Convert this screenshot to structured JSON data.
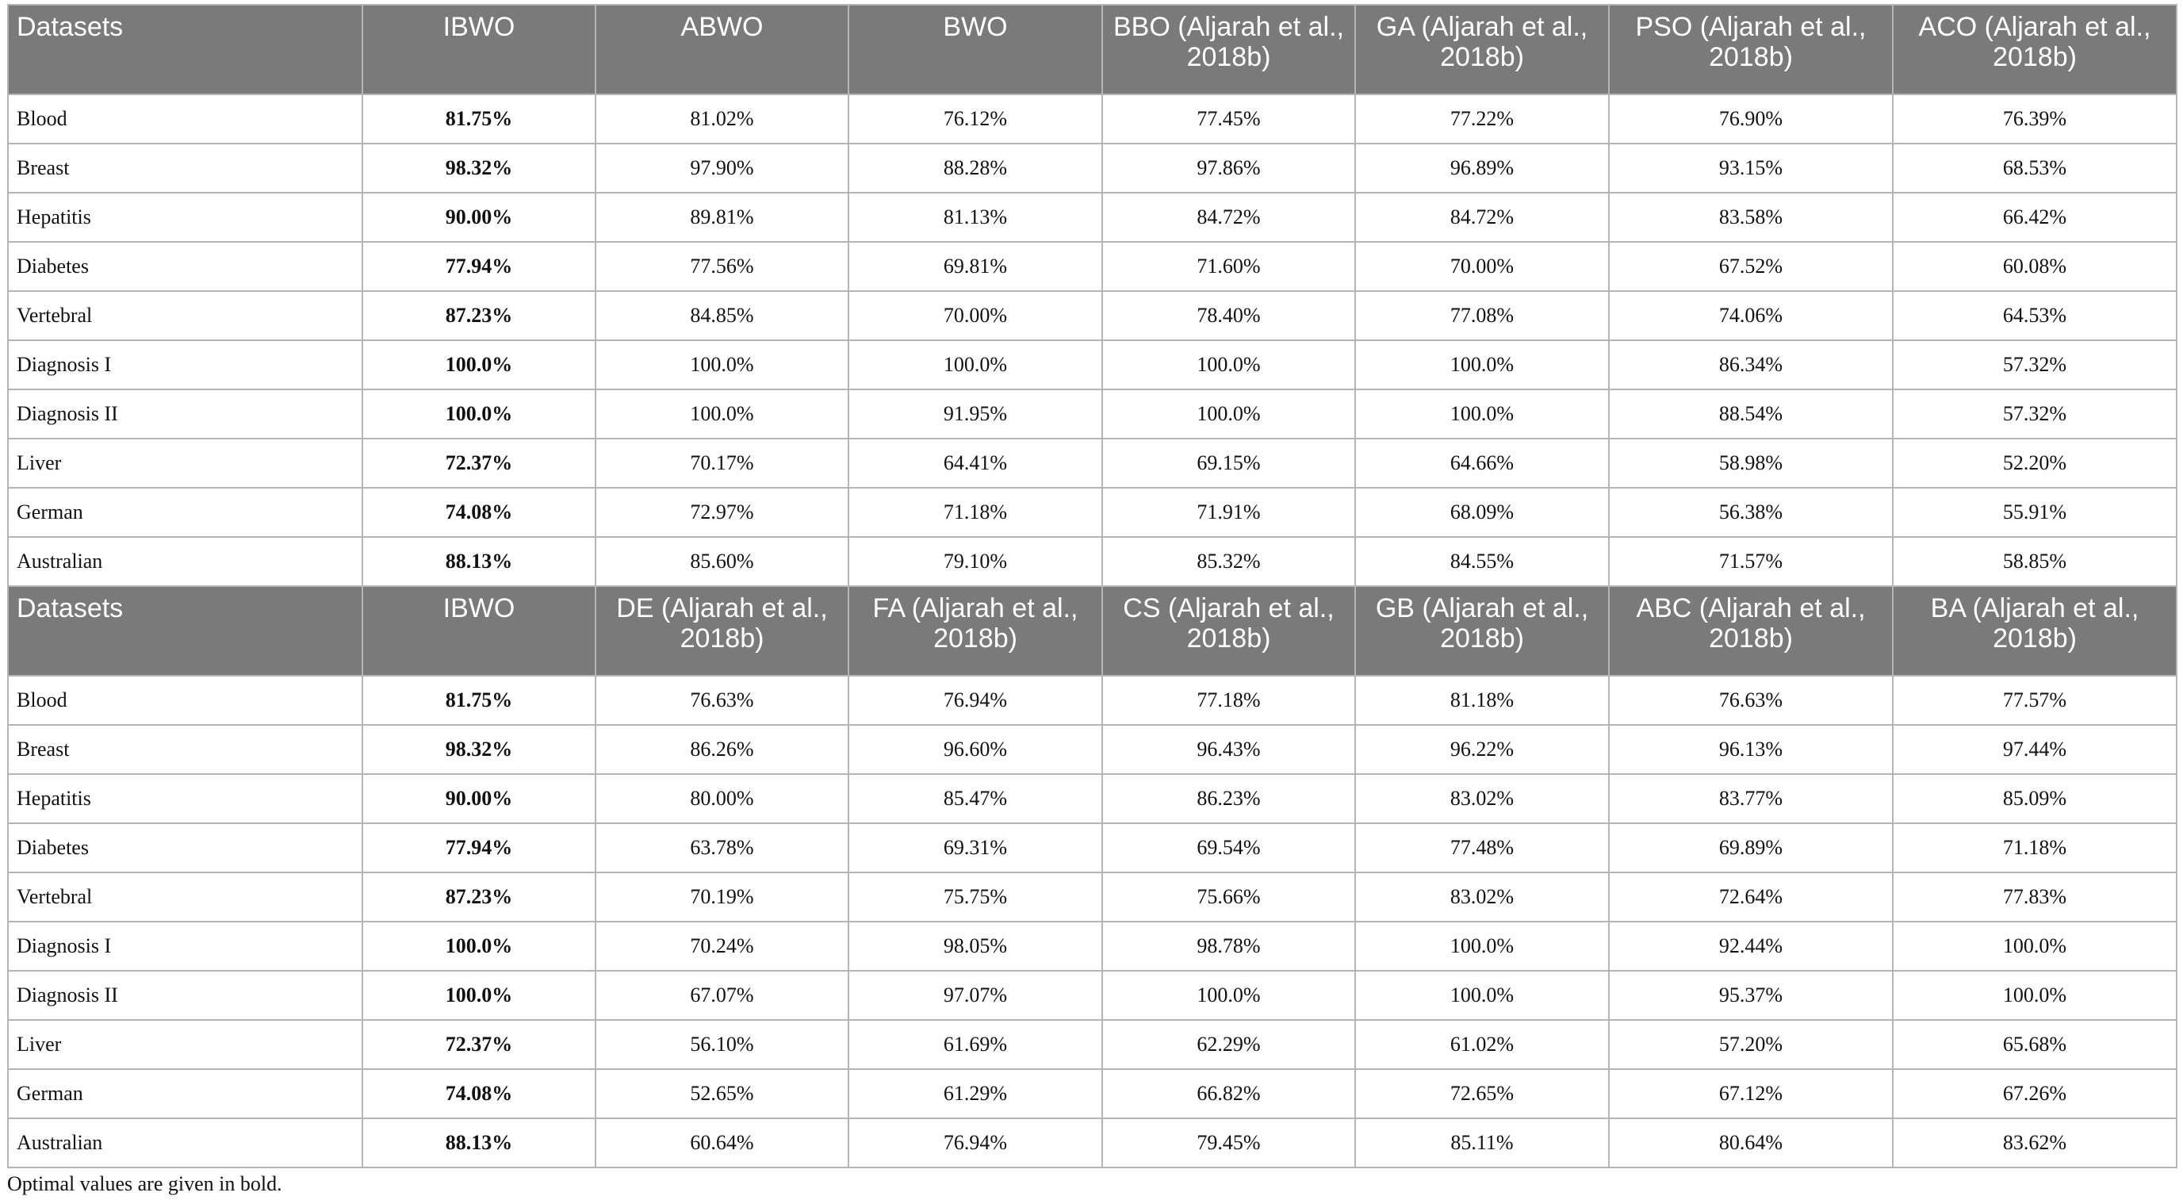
{
  "tables": [
    {
      "header": [
        "Datasets",
        "IBWO",
        "ABWO",
        "BWO",
        "BBO (Aljarah et al., 2018b)",
        "GA (Aljarah et al., 2018b)",
        "PSO (Aljarah et al., 2018b)",
        "ACO (Aljarah et al., 2018b)"
      ],
      "rows": [
        [
          "Blood",
          "81.75%",
          "81.02%",
          "76.12%",
          "77.45%",
          "77.22%",
          "76.90%",
          "76.39%"
        ],
        [
          "Breast",
          "98.32%",
          "97.90%",
          "88.28%",
          "97.86%",
          "96.89%",
          "93.15%",
          "68.53%"
        ],
        [
          "Hepatitis",
          "90.00%",
          "89.81%",
          "81.13%",
          "84.72%",
          "84.72%",
          "83.58%",
          "66.42%"
        ],
        [
          "Diabetes",
          "77.94%",
          "77.56%",
          "69.81%",
          "71.60%",
          "70.00%",
          "67.52%",
          "60.08%"
        ],
        [
          "Vertebral",
          "87.23%",
          "84.85%",
          "70.00%",
          "78.40%",
          "77.08%",
          "74.06%",
          "64.53%"
        ],
        [
          "Diagnosis I",
          "100.0%",
          "100.0%",
          "100.0%",
          "100.0%",
          "100.0%",
          "86.34%",
          "57.32%"
        ],
        [
          "Diagnosis II",
          "100.0%",
          "100.0%",
          "91.95%",
          "100.0%",
          "100.0%",
          "88.54%",
          "57.32%"
        ],
        [
          "Liver",
          "72.37%",
          "70.17%",
          "64.41%",
          "69.15%",
          "64.66%",
          "58.98%",
          "52.20%"
        ],
        [
          "German",
          "74.08%",
          "72.97%",
          "71.18%",
          "71.91%",
          "68.09%",
          "56.38%",
          "55.91%"
        ],
        [
          "Australian",
          "88.13%",
          "85.60%",
          "79.10%",
          "85.32%",
          "84.55%",
          "71.57%",
          "58.85%"
        ]
      ]
    },
    {
      "header": [
        "Datasets",
        "IBWO",
        "DE (Aljarah et al., 2018b)",
        "FA (Aljarah et al., 2018b)",
        "CS (Aljarah et al., 2018b)",
        "GB (Aljarah et al., 2018b)",
        "ABC (Aljarah et al., 2018b)",
        "BA (Aljarah et al., 2018b)"
      ],
      "rows": [
        [
          "Blood",
          "81.75%",
          "76.63%",
          "76.94%",
          "77.18%",
          "81.18%",
          "76.63%",
          "77.57%"
        ],
        [
          "Breast",
          "98.32%",
          "86.26%",
          "96.60%",
          "96.43%",
          "96.22%",
          "96.13%",
          "97.44%"
        ],
        [
          "Hepatitis",
          "90.00%",
          "80.00%",
          "85.47%",
          "86.23%",
          "83.02%",
          "83.77%",
          "85.09%"
        ],
        [
          "Diabetes",
          "77.94%",
          "63.78%",
          "69.31%",
          "69.54%",
          "77.48%",
          "69.89%",
          "71.18%"
        ],
        [
          "Vertebral",
          "87.23%",
          "70.19%",
          "75.75%",
          "75.66%",
          "83.02%",
          "72.64%",
          "77.83%"
        ],
        [
          "Diagnosis I",
          "100.0%",
          "70.24%",
          "98.05%",
          "98.78%",
          "100.0%",
          "92.44%",
          "100.0%"
        ],
        [
          "Diagnosis II",
          "100.0%",
          "67.07%",
          "97.07%",
          "100.0%",
          "100.0%",
          "95.37%",
          "100.0%"
        ],
        [
          "Liver",
          "72.37%",
          "56.10%",
          "61.69%",
          "62.29%",
          "61.02%",
          "57.20%",
          "65.68%"
        ],
        [
          "German",
          "74.08%",
          "52.65%",
          "61.29%",
          "66.82%",
          "72.65%",
          "67.12%",
          "67.26%"
        ],
        [
          "Australian",
          "88.13%",
          "60.64%",
          "76.94%",
          "79.45%",
          "85.11%",
          "80.64%",
          "83.62%"
        ]
      ]
    }
  ],
  "footnote": "Optimal values are given in bold."
}
